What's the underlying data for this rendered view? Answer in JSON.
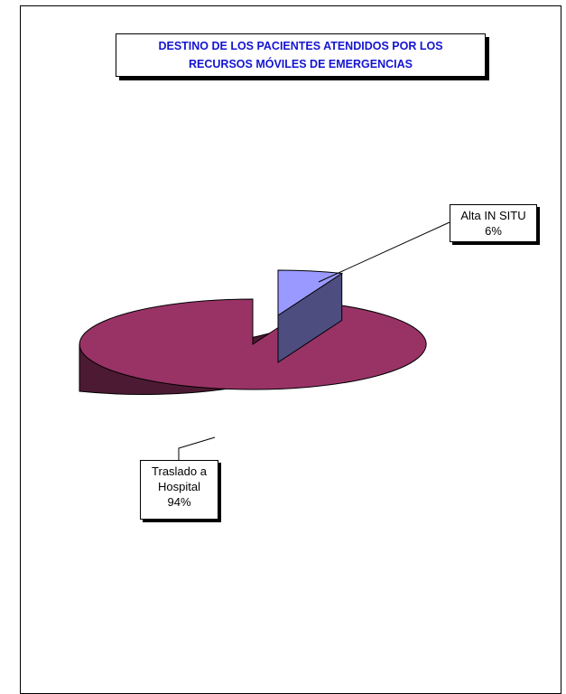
{
  "chart_data": {
    "type": "pie",
    "title_lines": [
      "DESTINO DE LOS PACIENTES ATENDIDOS POR LOS",
      "RECURSOS MÓVILES DE EMERGENCIAS"
    ],
    "categories": [
      "Alta IN SITU",
      "Traslado a Hospital"
    ],
    "values": [
      6,
      94
    ],
    "labels": [
      {
        "lines": [
          "Alta IN SITU",
          "6%"
        ]
      },
      {
        "lines": [
          "Traslado a",
          "Hospital",
          "94%"
        ]
      }
    ],
    "colors": {
      "alta_top": "#9999ff",
      "alta_side": "#4d4d80",
      "traslado_top": "#993366",
      "traslado_side": "#4c1a33",
      "title_text": "#1414d2"
    },
    "exploded_slice": "Alta IN SITU",
    "legend": "none"
  }
}
